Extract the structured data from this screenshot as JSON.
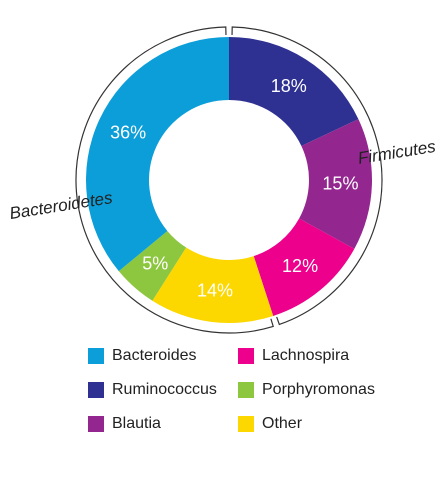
{
  "chart_data": {
    "type": "pie",
    "donut": true,
    "categories": [
      "Ruminococcus",
      "Blautia",
      "Lachnospira",
      "Other",
      "Porphyromonas",
      "Bacteroides"
    ],
    "values": [
      18,
      15,
      12,
      14,
      5,
      36
    ],
    "value_labels": [
      "18%",
      "15%",
      "12%",
      "14%",
      "5%",
      "36%"
    ],
    "colors": [
      "#2e3192",
      "#93278f",
      "#ec008c",
      "#fcd800",
      "#8dc63f",
      "#0b9ed9"
    ],
    "groups": [
      {
        "name": "Firmicutes",
        "members": [
          "Ruminococcus",
          "Blautia",
          "Lachnospira"
        ]
      },
      {
        "name": "Bacteroidetes",
        "members": [
          "Other",
          "Porphyromonas",
          "Bacteroides"
        ]
      }
    ],
    "legend": {
      "position": "bottom",
      "items": [
        {
          "label": "Bacteroides",
          "color": "#0b9ed9"
        },
        {
          "label": "Lachnospira",
          "color": "#ec008c"
        },
        {
          "label": "Ruminococcus",
          "color": "#2e3192"
        },
        {
          "label": "Porphyromonas",
          "color": "#8dc63f"
        },
        {
          "label": "Blautia",
          "color": "#93278f"
        },
        {
          "label": "Other",
          "color": "#fcd800"
        }
      ]
    }
  }
}
